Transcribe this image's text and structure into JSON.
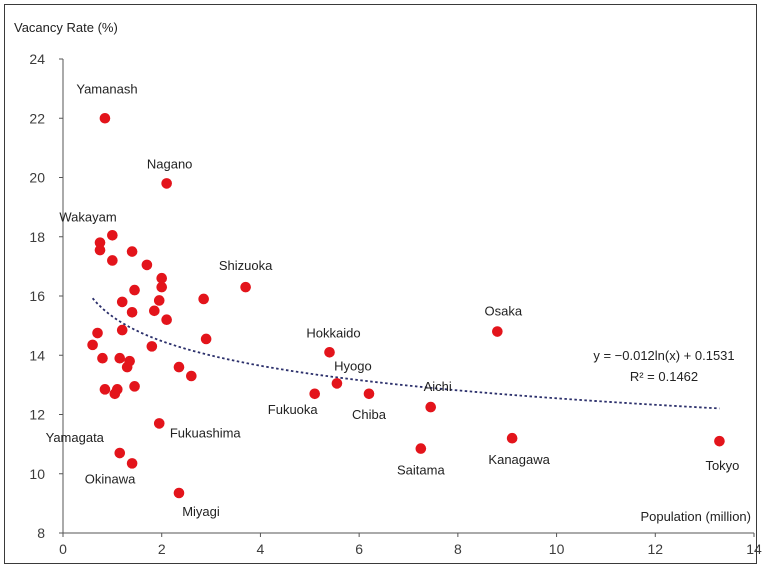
{
  "chart_data": {
    "type": "scatter",
    "ylabel": "Vacancy Rate (%)",
    "xlabel": "Population (million)",
    "xlim": [
      0,
      14
    ],
    "ylim": [
      8,
      24
    ],
    "x_ticks": [
      "0",
      "2",
      "4",
      "6",
      "8",
      "10",
      "12",
      "14"
    ],
    "y_ticks": [
      "8",
      "10",
      "12",
      "14",
      "16",
      "18",
      "20",
      "22",
      "24"
    ],
    "marker_color": "#e3141b",
    "trendline_color": "#2b2f6b",
    "trendline": {
      "equation": "y = −0.012ln(x) + 0.1531",
      "r2": "R² = 0.1462",
      "a": -0.012,
      "b": 0.1531,
      "x_range": [
        0.6,
        13.3
      ]
    },
    "points": [
      {
        "x": 0.85,
        "y": 22.0,
        "label": "Yamanash"
      },
      {
        "x": 2.1,
        "y": 19.8,
        "label": "Nagano"
      },
      {
        "x": 0.75,
        "y": 17.8,
        "label": "Wakayam"
      },
      {
        "x": 3.7,
        "y": 16.3,
        "label": "Shizuoka"
      },
      {
        "x": 5.4,
        "y": 14.1,
        "label": "Hokkaido"
      },
      {
        "x": 8.8,
        "y": 14.8,
        "label": "Osaka"
      },
      {
        "x": 5.55,
        "y": 13.05,
        "label": "Hyogo"
      },
      {
        "x": 5.1,
        "y": 12.7,
        "label": "Fukuoka"
      },
      {
        "x": 6.2,
        "y": 12.7,
        "label": "Chiba"
      },
      {
        "x": 7.45,
        "y": 12.25,
        "label": "Aichi"
      },
      {
        "x": 1.95,
        "y": 11.7,
        "label": "Fukuashima"
      },
      {
        "x": 1.15,
        "y": 10.7,
        "label": "Yamagata"
      },
      {
        "x": 1.4,
        "y": 10.35,
        "label": "Okinawa"
      },
      {
        "x": 2.35,
        "y": 9.35,
        "label": "Miyagi"
      },
      {
        "x": 7.25,
        "y": 10.85,
        "label": "Saitama"
      },
      {
        "x": 9.1,
        "y": 11.2,
        "label": "Kanagawa"
      },
      {
        "x": 13.3,
        "y": 11.1,
        "label": "Tokyo"
      },
      {
        "x": 0.75,
        "y": 17.55,
        "label": ""
      },
      {
        "x": 1.0,
        "y": 18.05,
        "label": ""
      },
      {
        "x": 1.0,
        "y": 17.2,
        "label": ""
      },
      {
        "x": 1.4,
        "y": 17.5,
        "label": ""
      },
      {
        "x": 1.7,
        "y": 17.05,
        "label": ""
      },
      {
        "x": 2.0,
        "y": 16.6,
        "label": ""
      },
      {
        "x": 2.0,
        "y": 16.3,
        "label": ""
      },
      {
        "x": 1.45,
        "y": 16.2,
        "label": ""
      },
      {
        "x": 1.2,
        "y": 15.8,
        "label": ""
      },
      {
        "x": 1.95,
        "y": 15.85,
        "label": ""
      },
      {
        "x": 1.85,
        "y": 15.5,
        "label": ""
      },
      {
        "x": 2.85,
        "y": 15.9,
        "label": ""
      },
      {
        "x": 1.4,
        "y": 15.45,
        "label": ""
      },
      {
        "x": 2.1,
        "y": 15.2,
        "label": ""
      },
      {
        "x": 1.2,
        "y": 14.85,
        "label": ""
      },
      {
        "x": 0.7,
        "y": 14.75,
        "label": ""
      },
      {
        "x": 2.9,
        "y": 14.55,
        "label": ""
      },
      {
        "x": 0.6,
        "y": 14.35,
        "label": ""
      },
      {
        "x": 1.8,
        "y": 14.3,
        "label": ""
      },
      {
        "x": 0.8,
        "y": 13.9,
        "label": ""
      },
      {
        "x": 1.15,
        "y": 13.9,
        "label": ""
      },
      {
        "x": 1.35,
        "y": 13.8,
        "label": ""
      },
      {
        "x": 1.3,
        "y": 13.6,
        "label": ""
      },
      {
        "x": 2.35,
        "y": 13.6,
        "label": ""
      },
      {
        "x": 2.6,
        "y": 13.3,
        "label": ""
      },
      {
        "x": 0.85,
        "y": 12.85,
        "label": ""
      },
      {
        "x": 1.1,
        "y": 12.85,
        "label": ""
      },
      {
        "x": 1.05,
        "y": 12.7,
        "label": ""
      },
      {
        "x": 1.45,
        "y": 12.95,
        "label": ""
      }
    ]
  }
}
